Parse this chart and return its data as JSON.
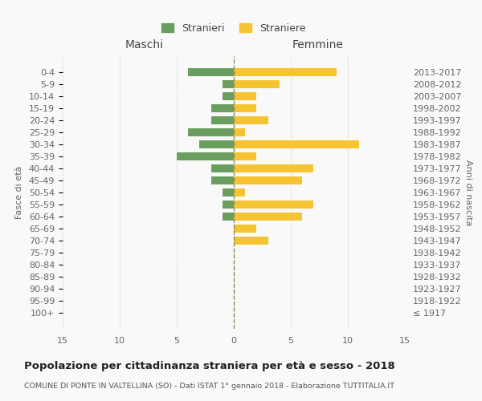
{
  "age_groups": [
    "100+",
    "95-99",
    "90-94",
    "85-89",
    "80-84",
    "75-79",
    "70-74",
    "65-69",
    "60-64",
    "55-59",
    "50-54",
    "45-49",
    "40-44",
    "35-39",
    "30-34",
    "25-29",
    "20-24",
    "15-19",
    "10-14",
    "5-9",
    "0-4"
  ],
  "birth_years": [
    "≤ 1917",
    "1918-1922",
    "1923-1927",
    "1928-1932",
    "1933-1937",
    "1938-1942",
    "1943-1947",
    "1948-1952",
    "1953-1957",
    "1958-1962",
    "1963-1967",
    "1968-1972",
    "1973-1977",
    "1978-1982",
    "1983-1987",
    "1988-1992",
    "1993-1997",
    "1998-2002",
    "2003-2007",
    "2008-2012",
    "2013-2017"
  ],
  "males": [
    0,
    0,
    0,
    0,
    0,
    0,
    0,
    0,
    1,
    1,
    1,
    2,
    2,
    5,
    3,
    4,
    2,
    2,
    1,
    1,
    4
  ],
  "females": [
    0,
    0,
    0,
    0,
    0,
    0,
    3,
    2,
    6,
    7,
    1,
    6,
    7,
    2,
    11,
    1,
    3,
    2,
    2,
    4,
    9
  ],
  "male_color": "#6a9e5e",
  "female_color": "#f5c430",
  "center_line_color": "#8b8b5a",
  "grid_color": "#dddddd",
  "bg_color": "#f9f9f9",
  "title": "Popolazione per cittadinanza straniera per età e sesso - 2018",
  "subtitle": "COMUNE DI PONTE IN VALTELLINA (SO) - Dati ISTAT 1° gennaio 2018 - Elaborazione TUTTITALIA.IT",
  "ylabel_left": "Fasce di età",
  "ylabel_right": "Anni di nascita",
  "xlabel_left": "Maschi",
  "xlabel_top_right": "Femmine",
  "legend_male": "Stranieri",
  "legend_female": "Straniere",
  "xlim": 15
}
